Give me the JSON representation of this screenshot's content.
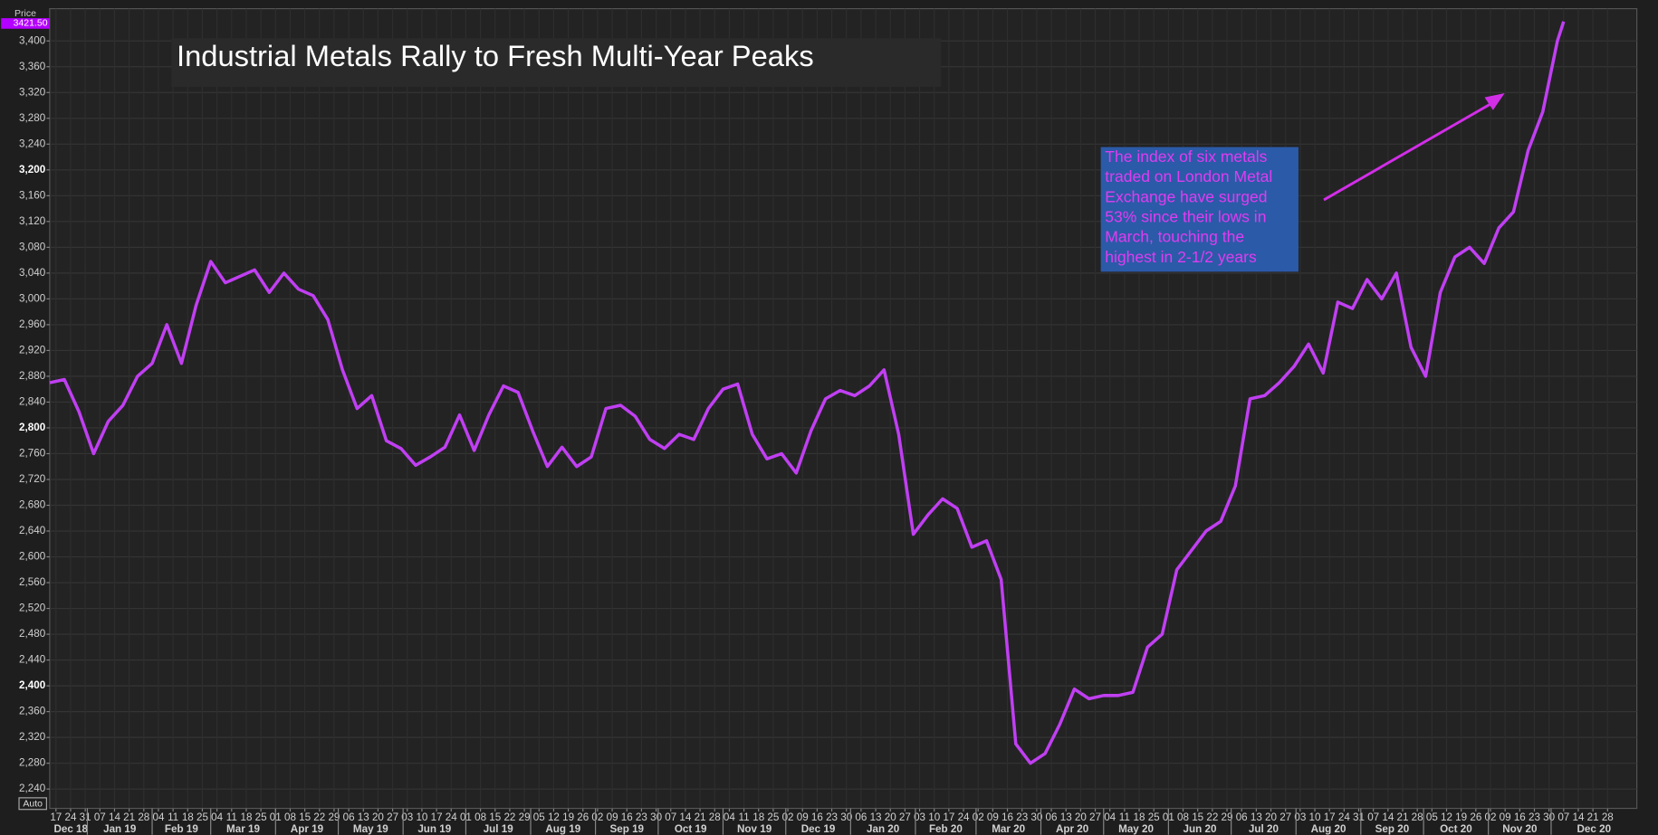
{
  "chart_data": {
    "type": "line",
    "title": "Industrial Metals Rally to Fresh Multi-Year Peaks",
    "annotation": "The index of six metals traded on London Metal Exchange have surged 53% since their lows in March, touching the highest in 2-1/2 years",
    "y_axis_label": "Price",
    "last_price_label": "3421.50",
    "scale_mode_label": "Auto",
    "grid": true,
    "x": [
      "2018-12-14",
      "2018-12-21",
      "2018-12-28",
      "2019-01-04",
      "2019-01-11",
      "2019-01-18",
      "2019-01-25",
      "2019-02-01",
      "2019-02-08",
      "2019-02-15",
      "2019-02-22",
      "2019-03-01",
      "2019-03-08",
      "2019-03-15",
      "2019-03-22",
      "2019-03-29",
      "2019-04-05",
      "2019-04-12",
      "2019-04-19",
      "2019-04-26",
      "2019-05-03",
      "2019-05-10",
      "2019-05-17",
      "2019-05-24",
      "2019-05-31",
      "2019-06-07",
      "2019-06-14",
      "2019-06-21",
      "2019-06-28",
      "2019-07-05",
      "2019-07-12",
      "2019-07-19",
      "2019-07-26",
      "2019-08-02",
      "2019-08-09",
      "2019-08-16",
      "2019-08-23",
      "2019-08-30",
      "2019-09-06",
      "2019-09-13",
      "2019-09-20",
      "2019-09-27",
      "2019-10-04",
      "2019-10-11",
      "2019-10-18",
      "2019-10-25",
      "2019-11-01",
      "2019-11-08",
      "2019-11-15",
      "2019-11-22",
      "2019-11-29",
      "2019-12-06",
      "2019-12-13",
      "2019-12-20",
      "2019-12-27",
      "2020-01-03",
      "2020-01-10",
      "2020-01-17",
      "2020-01-24",
      "2020-01-31",
      "2020-02-07",
      "2020-02-14",
      "2020-02-21",
      "2020-02-28",
      "2020-03-06",
      "2020-03-13",
      "2020-03-20",
      "2020-03-27",
      "2020-04-03",
      "2020-04-10",
      "2020-04-17",
      "2020-04-24",
      "2020-05-01",
      "2020-05-08",
      "2020-05-15",
      "2020-05-22",
      "2020-05-29",
      "2020-06-05",
      "2020-06-12",
      "2020-06-19",
      "2020-06-26",
      "2020-07-03",
      "2020-07-10",
      "2020-07-17",
      "2020-07-24",
      "2020-07-31",
      "2020-08-07",
      "2020-08-14",
      "2020-08-21",
      "2020-08-28",
      "2020-09-04",
      "2020-09-11",
      "2020-09-18",
      "2020-09-25",
      "2020-10-02",
      "2020-10-09",
      "2020-10-16",
      "2020-10-23",
      "2020-10-30",
      "2020-11-06",
      "2020-11-13",
      "2020-11-20",
      "2020-11-27",
      "2020-12-04",
      "2020-12-07"
    ],
    "series": [
      {
        "color": "#c03ff2",
        "values": [
          2870,
          2875,
          2825,
          2760,
          2810,
          2835,
          2880,
          2900,
          2960,
          2900,
          2990,
          3058,
          3025,
          3035,
          3045,
          3010,
          3040,
          3015,
          3005,
          2968,
          2890,
          2830,
          2850,
          2780,
          2768,
          2742,
          2755,
          2770,
          2820,
          2765,
          2820,
          2865,
          2855,
          2795,
          2740,
          2770,
          2740,
          2755,
          2830,
          2835,
          2818,
          2782,
          2768,
          2790,
          2782,
          2830,
          2860,
          2868,
          2790,
          2752,
          2760,
          2730,
          2795,
          2845,
          2858,
          2850,
          2865,
          2890,
          2790,
          2635,
          2665,
          2690,
          2675,
          2615,
          2625,
          2565,
          2310,
          2280,
          2295,
          2340,
          2395,
          2380,
          2385,
          2385,
          2390,
          2460,
          2480,
          2580,
          2610,
          2640,
          2655,
          2710,
          2845,
          2850,
          2870,
          2895,
          2930,
          2885,
          2995,
          2985,
          3030,
          3000,
          3040,
          2925,
          2880,
          3010,
          3065,
          3080,
          3055,
          3110,
          3135,
          3230,
          3290,
          3400,
          3430
        ]
      }
    ],
    "xlim": [
      "2018-12-14",
      "2021-01-11"
    ],
    "ylim": [
      2210,
      3450
    ],
    "yticks": [
      {
        "value": 2240,
        "label": "2,240"
      },
      {
        "value": 2280,
        "label": "2,280"
      },
      {
        "value": 2320,
        "label": "2,320"
      },
      {
        "value": 2360,
        "label": "2,360"
      },
      {
        "value": 2400,
        "label": "2,400"
      },
      {
        "value": 2440,
        "label": "2,440"
      },
      {
        "value": 2480,
        "label": "2,480"
      },
      {
        "value": 2520,
        "label": "2,520"
      },
      {
        "value": 2560,
        "label": "2,560"
      },
      {
        "value": 2600,
        "label": "2,600"
      },
      {
        "value": 2640,
        "label": "2,640"
      },
      {
        "value": 2680,
        "label": "2,680"
      },
      {
        "value": 2720,
        "label": "2,720"
      },
      {
        "value": 2760,
        "label": "2,760"
      },
      {
        "value": 2800,
        "label": "2,800"
      },
      {
        "value": 2840,
        "label": "2,840"
      },
      {
        "value": 2880,
        "label": "2,880"
      },
      {
        "value": 2920,
        "label": "2,920"
      },
      {
        "value": 2960,
        "label": "2,960"
      },
      {
        "value": 3000,
        "label": "3,000"
      },
      {
        "value": 3040,
        "label": "3,040"
      },
      {
        "value": 3080,
        "label": "3,080"
      },
      {
        "value": 3120,
        "label": "3,120"
      },
      {
        "value": 3160,
        "label": "3,160"
      },
      {
        "value": 3200,
        "label": "3,200"
      },
      {
        "value": 3240,
        "label": "3,240"
      },
      {
        "value": 3280,
        "label": "3,280"
      },
      {
        "value": 3320,
        "label": "3,320"
      },
      {
        "value": 3360,
        "label": "3,360"
      },
      {
        "value": 3400,
        "label": "3,400"
      }
    ],
    "xticks": [
      {
        "value": "2018-12-01",
        "label": "Dec 18"
      },
      {
        "value": "2019-01-01",
        "label": "Jan 19"
      },
      {
        "value": "2019-02-01",
        "label": "Feb 19"
      },
      {
        "value": "2019-03-01",
        "label": "Mar 19"
      },
      {
        "value": "2019-04-01",
        "label": "Apr 19"
      },
      {
        "value": "2019-05-01",
        "label": "May 19"
      },
      {
        "value": "2019-06-01",
        "label": "Jun 19"
      },
      {
        "value": "2019-07-01",
        "label": "Jul 19"
      },
      {
        "value": "2019-08-01",
        "label": "Aug 19"
      },
      {
        "value": "2019-09-01",
        "label": "Sep 19"
      },
      {
        "value": "2019-10-01",
        "label": "Oct 19"
      },
      {
        "value": "2019-11-01",
        "label": "Nov 19"
      },
      {
        "value": "2019-12-01",
        "label": "Dec 19"
      },
      {
        "value": "2020-01-01",
        "label": "Jan 20"
      },
      {
        "value": "2020-02-01",
        "label": "Feb 20"
      },
      {
        "value": "2020-03-01",
        "label": "Mar 20"
      },
      {
        "value": "2020-04-01",
        "label": "Apr 20"
      },
      {
        "value": "2020-05-01",
        "label": "May 20"
      },
      {
        "value": "2020-06-01",
        "label": "Jun 20"
      },
      {
        "value": "2020-07-01",
        "label": "Jul 20"
      },
      {
        "value": "2020-08-01",
        "label": "Aug 20"
      },
      {
        "value": "2020-09-01",
        "label": "Sep 20"
      },
      {
        "value": "2020-10-01",
        "label": "Oct 20"
      },
      {
        "value": "2020-11-01",
        "label": "Nov 20"
      },
      {
        "value": "2020-12-01",
        "label": "Dec 20"
      }
    ],
    "xticks_minor": [
      {
        "value": "2018-12-17",
        "label": "17"
      },
      {
        "value": "2018-12-24",
        "label": "24"
      },
      {
        "value": "2018-12-31",
        "label": "31"
      },
      {
        "value": "2019-01-07",
        "label": "07"
      },
      {
        "value": "2019-01-14",
        "label": "14"
      },
      {
        "value": "2019-01-21",
        "label": "21"
      },
      {
        "value": "2019-01-28",
        "label": "28"
      },
      {
        "value": "2019-02-04",
        "label": "04"
      },
      {
        "value": "2019-02-11",
        "label": "11"
      },
      {
        "value": "2019-02-18",
        "label": "18"
      },
      {
        "value": "2019-02-25",
        "label": "25"
      },
      {
        "value": "2019-03-04",
        "label": "04"
      },
      {
        "value": "2019-03-11",
        "label": "11"
      },
      {
        "value": "2019-03-18",
        "label": "18"
      },
      {
        "value": "2019-03-25",
        "label": "25"
      },
      {
        "value": "2019-04-01",
        "label": "01"
      },
      {
        "value": "2019-04-08",
        "label": "08"
      },
      {
        "value": "2019-04-15",
        "label": "15"
      },
      {
        "value": "2019-04-22",
        "label": "22"
      },
      {
        "value": "2019-04-29",
        "label": "29"
      },
      {
        "value": "2019-05-06",
        "label": "06"
      },
      {
        "value": "2019-05-13",
        "label": "13"
      },
      {
        "value": "2019-05-20",
        "label": "20"
      },
      {
        "value": "2019-05-27",
        "label": "27"
      },
      {
        "value": "2019-06-03",
        "label": "03"
      },
      {
        "value": "2019-06-10",
        "label": "10"
      },
      {
        "value": "2019-06-17",
        "label": "17"
      },
      {
        "value": "2019-06-24",
        "label": "24"
      },
      {
        "value": "2019-07-01",
        "label": "01"
      },
      {
        "value": "2019-07-08",
        "label": "08"
      },
      {
        "value": "2019-07-15",
        "label": "15"
      },
      {
        "value": "2019-07-22",
        "label": "22"
      },
      {
        "value": "2019-07-29",
        "label": "29"
      },
      {
        "value": "2019-08-05",
        "label": "05"
      },
      {
        "value": "2019-08-12",
        "label": "12"
      },
      {
        "value": "2019-08-19",
        "label": "19"
      },
      {
        "value": "2019-08-26",
        "label": "26"
      },
      {
        "value": "2019-09-02",
        "label": "02"
      },
      {
        "value": "2019-09-09",
        "label": "09"
      },
      {
        "value": "2019-09-16",
        "label": "16"
      },
      {
        "value": "2019-09-23",
        "label": "23"
      },
      {
        "value": "2019-09-30",
        "label": "30"
      },
      {
        "value": "2019-10-07",
        "label": "07"
      },
      {
        "value": "2019-10-14",
        "label": "14"
      },
      {
        "value": "2019-10-21",
        "label": "21"
      },
      {
        "value": "2019-10-28",
        "label": "28"
      },
      {
        "value": "2019-11-04",
        "label": "04"
      },
      {
        "value": "2019-11-11",
        "label": "11"
      },
      {
        "value": "2019-11-18",
        "label": "18"
      },
      {
        "value": "2019-11-25",
        "label": "25"
      },
      {
        "value": "2019-12-02",
        "label": "02"
      },
      {
        "value": "2019-12-09",
        "label": "09"
      },
      {
        "value": "2019-12-16",
        "label": "16"
      },
      {
        "value": "2019-12-23",
        "label": "23"
      },
      {
        "value": "2019-12-30",
        "label": "30"
      },
      {
        "value": "2020-01-06",
        "label": "06"
      },
      {
        "value": "2020-01-13",
        "label": "13"
      },
      {
        "value": "2020-01-20",
        "label": "20"
      },
      {
        "value": "2020-01-27",
        "label": "27"
      },
      {
        "value": "2020-02-03",
        "label": "03"
      },
      {
        "value": "2020-02-10",
        "label": "10"
      },
      {
        "value": "2020-02-17",
        "label": "17"
      },
      {
        "value": "2020-02-24",
        "label": "24"
      },
      {
        "value": "2020-03-02",
        "label": "02"
      },
      {
        "value": "2020-03-09",
        "label": "09"
      },
      {
        "value": "2020-03-16",
        "label": "16"
      },
      {
        "value": "2020-03-23",
        "label": "23"
      },
      {
        "value": "2020-03-30",
        "label": "30"
      },
      {
        "value": "2020-04-06",
        "label": "06"
      },
      {
        "value": "2020-04-13",
        "label": "13"
      },
      {
        "value": "2020-04-20",
        "label": "20"
      },
      {
        "value": "2020-04-27",
        "label": "27"
      },
      {
        "value": "2020-05-04",
        "label": "04"
      },
      {
        "value": "2020-05-11",
        "label": "11"
      },
      {
        "value": "2020-05-18",
        "label": "18"
      },
      {
        "value": "2020-05-25",
        "label": "25"
      },
      {
        "value": "2020-06-01",
        "label": "01"
      },
      {
        "value": "2020-06-08",
        "label": "08"
      },
      {
        "value": "2020-06-15",
        "label": "15"
      },
      {
        "value": "2020-06-22",
        "label": "22"
      },
      {
        "value": "2020-06-29",
        "label": "29"
      },
      {
        "value": "2020-07-06",
        "label": "06"
      },
      {
        "value": "2020-07-13",
        "label": "13"
      },
      {
        "value": "2020-07-20",
        "label": "20"
      },
      {
        "value": "2020-07-27",
        "label": "27"
      },
      {
        "value": "2020-08-03",
        "label": "03"
      },
      {
        "value": "2020-08-10",
        "label": "10"
      },
      {
        "value": "2020-08-17",
        "label": "17"
      },
      {
        "value": "2020-08-24",
        "label": "24"
      },
      {
        "value": "2020-08-31",
        "label": "31"
      },
      {
        "value": "2020-09-07",
        "label": "07"
      },
      {
        "value": "2020-09-14",
        "label": "14"
      },
      {
        "value": "2020-09-21",
        "label": "21"
      },
      {
        "value": "2020-09-28",
        "label": "28"
      },
      {
        "value": "2020-10-05",
        "label": "05"
      },
      {
        "value": "2020-10-12",
        "label": "12"
      },
      {
        "value": "2020-10-19",
        "label": "19"
      },
      {
        "value": "2020-10-26",
        "label": "26"
      },
      {
        "value": "2020-11-02",
        "label": "02"
      },
      {
        "value": "2020-11-09",
        "label": "09"
      },
      {
        "value": "2020-11-16",
        "label": "16"
      },
      {
        "value": "2020-11-23",
        "label": "23"
      },
      {
        "value": "2020-11-30",
        "label": "30"
      },
      {
        "value": "2020-12-07",
        "label": "07"
      },
      {
        "value": "2020-12-14",
        "label": "14"
      },
      {
        "value": "2020-12-21",
        "label": "21"
      },
      {
        "value": "2020-12-28",
        "label": "28"
      }
    ]
  }
}
